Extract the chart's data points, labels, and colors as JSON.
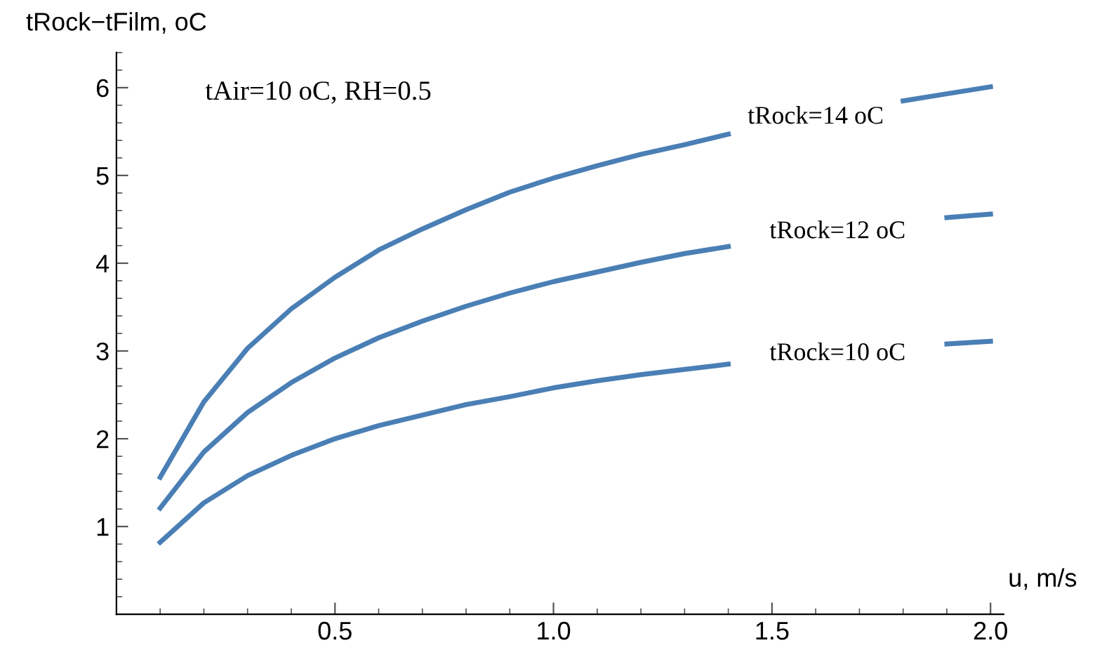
{
  "chart_data": {
    "type": "line",
    "xlabel": "u, m/s",
    "ylabel": "tRock−tFilm, oC",
    "annotations": [
      "tAir=10 oC, RH=0.5"
    ],
    "x": [
      0.1,
      0.2,
      0.3,
      0.4,
      0.5,
      0.6,
      0.7,
      0.8,
      0.9,
      1.0,
      1.1,
      1.2,
      1.3,
      1.4,
      1.5,
      1.6,
      1.7,
      1.8,
      1.9,
      2.0
    ],
    "series": [
      {
        "name": "tRock=14 oC",
        "color": "#4a7fb5",
        "values": [
          1.56,
          2.42,
          3.03,
          3.48,
          3.84,
          4.15,
          4.39,
          4.61,
          4.81,
          4.97,
          5.11,
          5.24,
          5.35,
          5.47,
          null,
          null,
          null,
          5.85,
          5.93,
          6.01
        ]
      },
      {
        "name": "tRock=12 oC",
        "color": "#4a7fb5",
        "values": [
          1.21,
          1.85,
          2.3,
          2.64,
          2.92,
          3.15,
          3.34,
          3.51,
          3.66,
          3.79,
          3.9,
          4.01,
          4.11,
          4.19,
          null,
          null,
          null,
          null,
          4.52,
          4.56
        ]
      },
      {
        "name": "tRock=10 oC",
        "color": "#4a7fb5",
        "values": [
          0.82,
          1.27,
          1.58,
          1.81,
          2.0,
          2.15,
          2.27,
          2.39,
          2.48,
          2.58,
          2.66,
          2.73,
          2.79,
          2.85,
          null,
          null,
          null,
          null,
          3.08,
          3.11
        ]
      }
    ],
    "xlim": [
      0,
      2.03
    ],
    "ylim": [
      0,
      6.4
    ],
    "xticks": [
      0.5,
      {
        "value": 1,
        "label": "1.0"
      },
      1.5,
      {
        "value": 2,
        "label": "2.0"
      }
    ],
    "yticks": [
      1,
      2,
      3,
      4,
      5,
      6
    ],
    "grid": false,
    "legend": false,
    "marker": "none",
    "line_style": "solid"
  }
}
